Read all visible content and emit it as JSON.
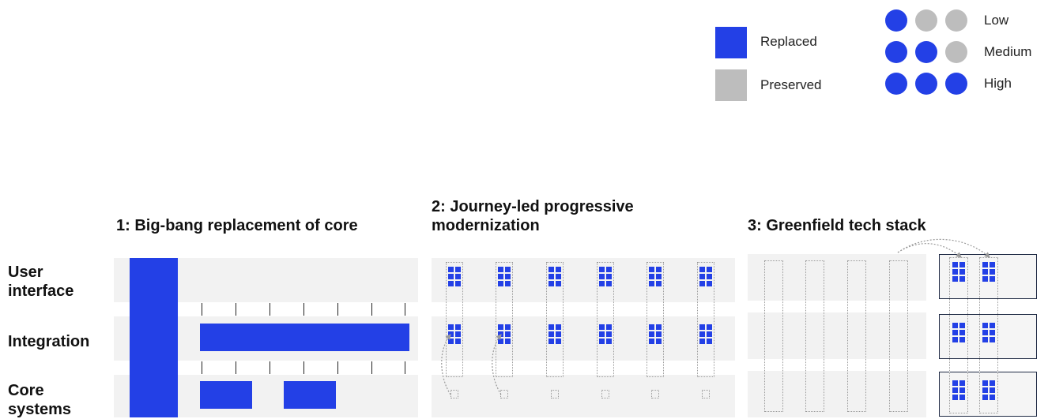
{
  "legend": {
    "replaced_label": "Replaced",
    "preserved_label": "Preserved",
    "low_label": "Low",
    "medium_label": "Medium",
    "high_label": "High",
    "low_level": 1,
    "medium_level": 2,
    "high_level": 3,
    "max_level": 3
  },
  "row_labels": [
    "User interface",
    "Integration",
    "Core systems"
  ],
  "panels": [
    {
      "title": "1: Big-bang replacement of core"
    },
    {
      "title": "2: Journey-led progressive modernization"
    },
    {
      "title": "3: Greenfield tech stack"
    }
  ],
  "colors": {
    "replaced": "#2340e6",
    "preserved": "#bdbdbd",
    "band": "#f2f2f2",
    "dotted": "#9a9a9a"
  }
}
